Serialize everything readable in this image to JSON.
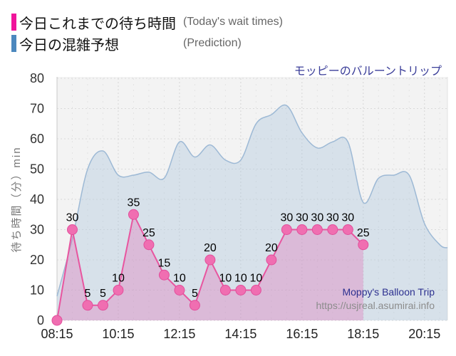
{
  "legend": {
    "items": [
      {
        "label": "今日これまでの待ち時間",
        "sublabel": "(Today's wait times)",
        "color": "#F0149B"
      },
      {
        "label": "今日の混雑予想",
        "sublabel": "(Prediction)",
        "color": "#4C88BE"
      }
    ]
  },
  "title": "モッピーのバルーントリップ",
  "watermark": {
    "line1": "Moppy's Balloon Trip",
    "line2": "https://usjreal.asumirai.info"
  },
  "chart_data": {
    "type": "area",
    "title": "モッピーのバルーントリップ",
    "ylabel": "待ち時間（分）min",
    "ylim": [
      0,
      80
    ],
    "ytick_step": 10,
    "xticks": [
      "08:15",
      "10:15",
      "12:15",
      "14:15",
      "16:15",
      "18:15",
      "20:15"
    ],
    "x_min": "08:15",
    "x_max": "21:00",
    "grid": true,
    "plot_bg": "#F3F3F3",
    "legend_position": "top-left",
    "series": [
      {
        "name": "今日これまでの待ち時間",
        "name_en": "Today's wait times",
        "type": "line",
        "point_labels": true,
        "line_color": "#E8559F",
        "point_color": "#F06EB1",
        "point_stroke": "#E14F9B",
        "fill_color": "rgba(226,107,177,0.32)",
        "times": [
          "08:15",
          "08:45",
          "09:15",
          "09:45",
          "10:15",
          "10:45",
          "11:15",
          "11:45",
          "12:15",
          "12:45",
          "13:15",
          "13:45",
          "14:15",
          "14:45",
          "15:15",
          "15:45",
          "16:15",
          "16:45",
          "17:15",
          "17:45",
          "18:15"
        ],
        "values": [
          0,
          30,
          5,
          5,
          10,
          35,
          25,
          15,
          10,
          5,
          20,
          10,
          10,
          10,
          20,
          30,
          30,
          30,
          30,
          30,
          25
        ]
      },
      {
        "name": "今日の混雑予想",
        "name_en": "Prediction",
        "type": "smooth-area",
        "line_color": "#9DB9D5",
        "fill_color": "rgba(172,198,221,0.40)",
        "times": [
          "08:15",
          "08:45",
          "09:15",
          "09:45",
          "10:15",
          "10:45",
          "11:15",
          "11:45",
          "12:15",
          "12:45",
          "13:15",
          "13:45",
          "14:15",
          "14:45",
          "15:15",
          "15:45",
          "16:15",
          "16:45",
          "17:15",
          "17:45",
          "18:15",
          "18:45",
          "19:15",
          "19:45",
          "20:15",
          "20:45",
          "21:00"
        ],
        "values": [
          8,
          27,
          50,
          56,
          48,
          48,
          49,
          47,
          59,
          54,
          58,
          53,
          53,
          65,
          68,
          71,
          62,
          57,
          59,
          59,
          39,
          47,
          48,
          48,
          32,
          25,
          24
        ]
      }
    ]
  }
}
